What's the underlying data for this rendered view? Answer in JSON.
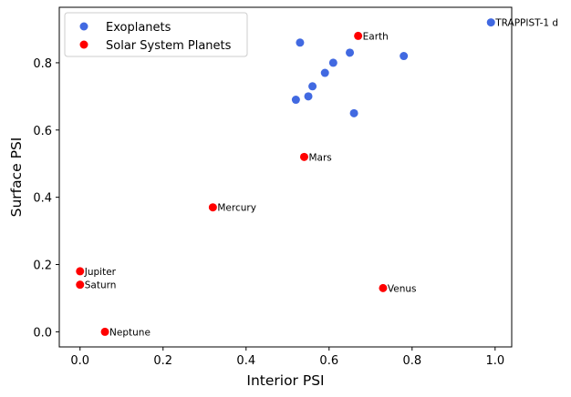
{
  "chart_data": {
    "type": "scatter",
    "xlabel": "Interior PSI",
    "ylabel": "Surface PSI",
    "xlim": [
      -0.05,
      1.04
    ],
    "ylim": [
      -0.045,
      0.965
    ],
    "xticks": [
      0.0,
      0.2,
      0.4,
      0.6,
      0.8,
      1.0
    ],
    "xtick_labels": [
      "0.0",
      "0.2",
      "0.4",
      "0.6",
      "0.8",
      "1.0"
    ],
    "yticks": [
      0.0,
      0.2,
      0.4,
      0.6,
      0.8
    ],
    "ytick_labels": [
      "0.0",
      "0.2",
      "0.4",
      "0.6",
      "0.8"
    ],
    "grid": false,
    "legend_position": "top-left",
    "series": [
      {
        "name": "Exoplanets",
        "color": "#4169E1",
        "points": [
          {
            "x": 0.53,
            "y": 0.86,
            "label": ""
          },
          {
            "x": 0.65,
            "y": 0.83,
            "label": ""
          },
          {
            "x": 0.78,
            "y": 0.82,
            "label": ""
          },
          {
            "x": 0.61,
            "y": 0.8,
            "label": ""
          },
          {
            "x": 0.59,
            "y": 0.77,
            "label": ""
          },
          {
            "x": 0.56,
            "y": 0.73,
            "label": ""
          },
          {
            "x": 0.55,
            "y": 0.7,
            "label": ""
          },
          {
            "x": 0.52,
            "y": 0.69,
            "label": ""
          },
          {
            "x": 0.66,
            "y": 0.65,
            "label": ""
          },
          {
            "x": 0.99,
            "y": 0.92,
            "label": "TRAPPIST-1 d"
          }
        ]
      },
      {
        "name": "Solar System Planets",
        "color": "#FF0000",
        "points": [
          {
            "x": 0.67,
            "y": 0.88,
            "label": "Earth"
          },
          {
            "x": 0.54,
            "y": 0.52,
            "label": "Mars"
          },
          {
            "x": 0.32,
            "y": 0.37,
            "label": "Mercury"
          },
          {
            "x": 0.0,
            "y": 0.18,
            "label": "Jupiter"
          },
          {
            "x": 0.0,
            "y": 0.14,
            "label": "Saturn"
          },
          {
            "x": 0.73,
            "y": 0.13,
            "label": "Venus"
          },
          {
            "x": 0.06,
            "y": 0.0,
            "label": "Neptune"
          }
        ]
      }
    ]
  }
}
